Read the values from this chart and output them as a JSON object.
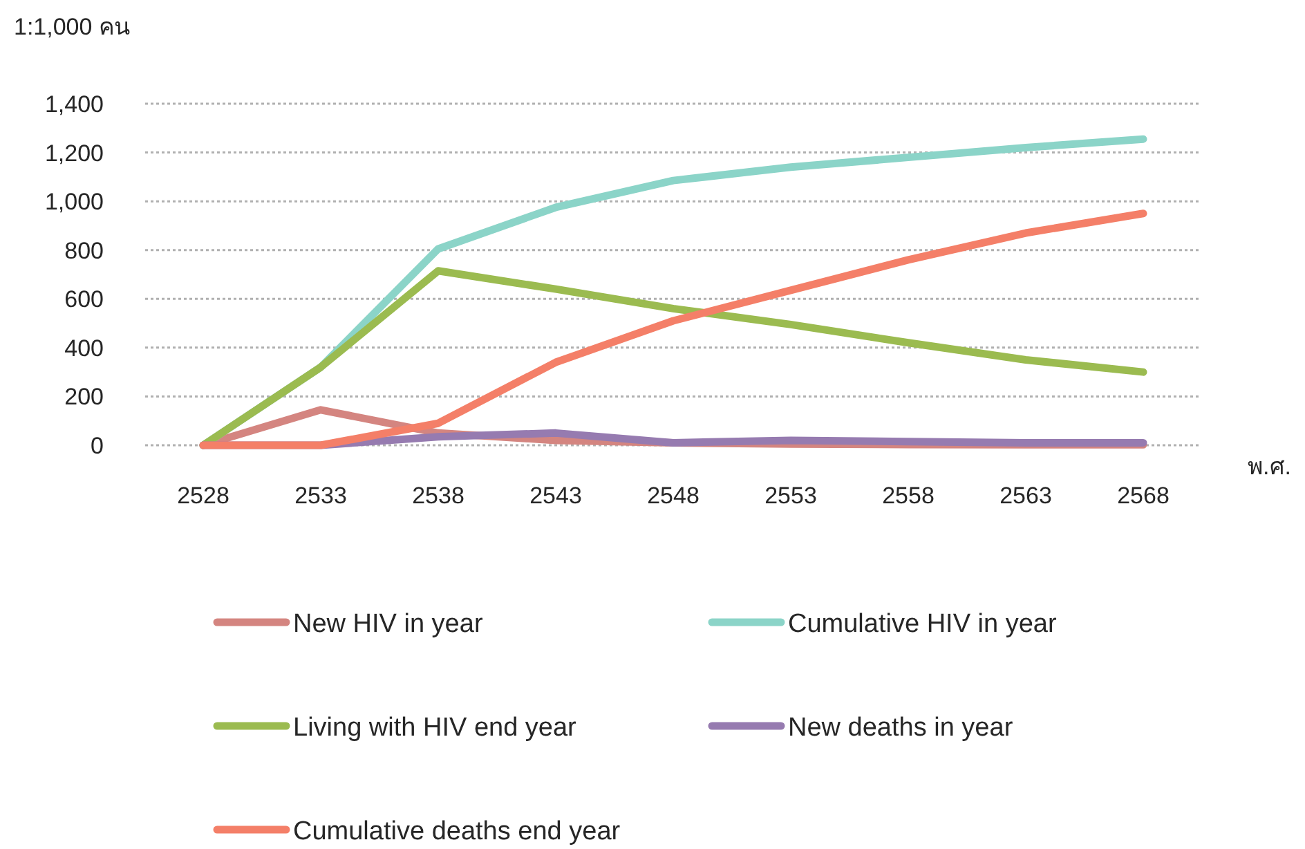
{
  "chart_data": {
    "type": "line",
    "ylabel": "1:1,000 คน",
    "xlabel": "พ.ศ.",
    "categories": [
      "2528",
      "2533",
      "2538",
      "2543",
      "2548",
      "2553",
      "2558",
      "2563",
      "2568"
    ],
    "ylim": [
      0,
      1400
    ],
    "yticks": [
      {
        "value": 0,
        "label": "0"
      },
      {
        "value": 200,
        "label": "200"
      },
      {
        "value": 400,
        "label": "400"
      },
      {
        "value": 600,
        "label": "600"
      },
      {
        "value": 800,
        "label": "800"
      },
      {
        "value": 1000,
        "label": "1,000"
      },
      {
        "value": 1200,
        "label": "1,200"
      },
      {
        "value": 1400,
        "label": "1,400"
      }
    ],
    "grid": "y",
    "legend": "bottom",
    "marker": "none",
    "line_style": "solid",
    "series": [
      {
        "name": "New HIV in year",
        "color": "#d48580",
        "values": [
          0,
          145,
          50,
          20,
          10,
          5,
          3,
          2,
          2
        ]
      },
      {
        "name": "Cumulative HIV in year",
        "color": "#8bd4c8",
        "values": [
          0,
          320,
          805,
          975,
          1085,
          1140,
          1180,
          1220,
          1255
        ]
      },
      {
        "name": "Living with HIV end year",
        "color": "#9bbb50",
        "values": [
          0,
          320,
          715,
          640,
          560,
          495,
          420,
          350,
          300
        ]
      },
      {
        "name": "New deaths in year",
        "color": "#967bb0",
        "values": [
          0,
          0,
          35,
          50,
          10,
          20,
          15,
          10,
          10
        ]
      },
      {
        "name": "Cumulative deaths end year",
        "color": "#f47f68",
        "values": [
          0,
          0,
          90,
          340,
          510,
          635,
          760,
          870,
          950
        ]
      }
    ]
  }
}
